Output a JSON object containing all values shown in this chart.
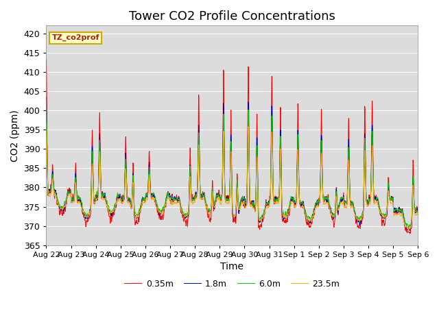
{
  "title": "Tower CO2 Profile Concentrations",
  "xlabel": "Time",
  "ylabel": "CO2 (ppm)",
  "ylim": [
    365,
    422
  ],
  "yticks": [
    365,
    370,
    375,
    380,
    385,
    390,
    395,
    400,
    405,
    410,
    415,
    420
  ],
  "legend_label": "TZ_co2prof",
  "series_labels": [
    "0.35m",
    "1.8m",
    "6.0m",
    "23.5m"
  ],
  "series_colors": [
    "#ff0000",
    "#0000bb",
    "#00cc00",
    "#ffaa00"
  ],
  "plot_bg_color": "#dcdcdc",
  "grid_color": "#ffffff",
  "title_fontsize": 13,
  "axis_fontsize": 10,
  "tick_fontsize": 9,
  "n_days": 15,
  "pts_per_day": 96,
  "xtick_labels": [
    "Aug 22",
    "Aug 23",
    "Aug 24",
    "Aug 25",
    "Aug 26",
    "Aug 27",
    "Aug 28",
    "Aug 29",
    "Aug 30",
    "Aug 31",
    "Sep 1",
    "Sep 2",
    "Sep 3",
    "Sep 4",
    "Sep 5",
    "Sep 6"
  ]
}
